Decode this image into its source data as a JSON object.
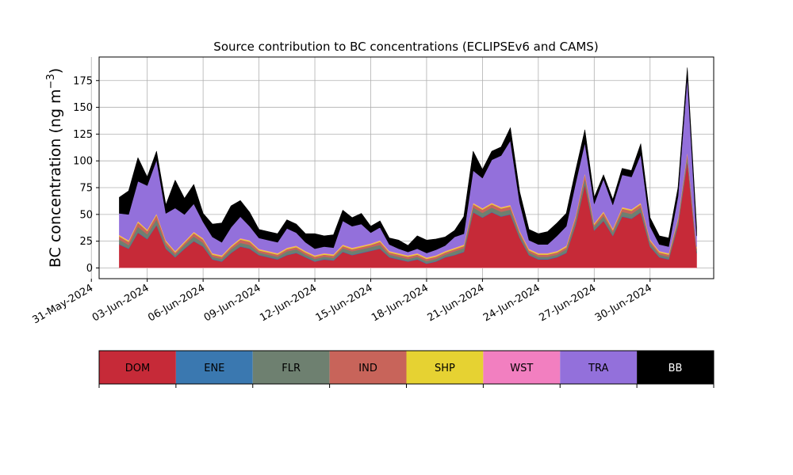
{
  "chart_data": {
    "type": "area",
    "stacked": true,
    "title": "Source contribution to BC concentrations (ECLIPSEv6 and CAMS)",
    "xlabel": "",
    "ylabel_main": "BC concentration (ng m",
    "ylabel_sup": "−3",
    "ylabel_end": ")",
    "ylim": [
      -10,
      197
    ],
    "yticks": [
      0,
      25,
      50,
      75,
      100,
      125,
      150,
      175
    ],
    "xlim": [
      "2024-05-31T10:00",
      "2024-07-03T10:00"
    ],
    "xticks": [
      {
        "date": "2024-05-31",
        "label": "31-May-2024"
      },
      {
        "date": "2024-06-03",
        "label": "03-Jun-2024"
      },
      {
        "date": "2024-06-06",
        "label": "06-Jun-2024"
      },
      {
        "date": "2024-06-09",
        "label": "09-Jun-2024"
      },
      {
        "date": "2024-06-12",
        "label": "12-Jun-2024"
      },
      {
        "date": "2024-06-15",
        "label": "15-Jun-2024"
      },
      {
        "date": "2024-06-18",
        "label": "18-Jun-2024"
      },
      {
        "date": "2024-06-21",
        "label": "21-Jun-2024"
      },
      {
        "date": "2024-06-24",
        "label": "24-Jun-2024"
      },
      {
        "date": "2024-06-27",
        "label": "27-Jun-2024"
      },
      {
        "date": "2024-06-30",
        "label": "30-Jun-2024"
      }
    ],
    "grid": true,
    "legend_position": "bottom",
    "x": [
      "2024-06-01T12:00",
      "2024-06-02T00:00",
      "2024-06-02T12:00",
      "2024-06-03T00:00",
      "2024-06-03T12:00",
      "2024-06-04T00:00",
      "2024-06-04T12:00",
      "2024-06-05T00:00",
      "2024-06-05T12:00",
      "2024-06-06T00:00",
      "2024-06-06T12:00",
      "2024-06-07T00:00",
      "2024-06-07T12:00",
      "2024-06-08T00:00",
      "2024-06-08T12:00",
      "2024-06-09T00:00",
      "2024-06-09T12:00",
      "2024-06-10T00:00",
      "2024-06-10T12:00",
      "2024-06-11T00:00",
      "2024-06-11T12:00",
      "2024-06-12T00:00",
      "2024-06-12T12:00",
      "2024-06-13T00:00",
      "2024-06-13T12:00",
      "2024-06-14T00:00",
      "2024-06-14T12:00",
      "2024-06-15T00:00",
      "2024-06-15T12:00",
      "2024-06-16T00:00",
      "2024-06-16T12:00",
      "2024-06-17T00:00",
      "2024-06-17T12:00",
      "2024-06-18T00:00",
      "2024-06-18T12:00",
      "2024-06-19T00:00",
      "2024-06-19T12:00",
      "2024-06-20T00:00",
      "2024-06-20T12:00",
      "2024-06-21T00:00",
      "2024-06-21T12:00",
      "2024-06-22T00:00",
      "2024-06-22T12:00",
      "2024-06-23T00:00",
      "2024-06-23T12:00",
      "2024-06-24T00:00",
      "2024-06-24T12:00",
      "2024-06-25T00:00",
      "2024-06-25T12:00",
      "2024-06-26T00:00",
      "2024-06-26T12:00",
      "2024-06-27T00:00",
      "2024-06-27T12:00",
      "2024-06-28T00:00",
      "2024-06-28T12:00",
      "2024-06-29T00:00",
      "2024-06-29T12:00",
      "2024-06-30T00:00",
      "2024-06-30T12:00",
      "2024-07-01T00:00",
      "2024-07-01T12:00",
      "2024-07-02T00:00",
      "2024-07-02T12:00"
    ],
    "series": [
      {
        "name": "DOM",
        "color": "#c62a38",
        "values": [
          22,
          18,
          33,
          27,
          40,
          18,
          10,
          18,
          25,
          20,
          8,
          6,
          14,
          20,
          18,
          12,
          10,
          8,
          12,
          14,
          10,
          6,
          8,
          7,
          15,
          12,
          14,
          16,
          18,
          10,
          8,
          6,
          8,
          4,
          6,
          10,
          12,
          15,
          52,
          47,
          52,
          48,
          50,
          28,
          12,
          8,
          8,
          10,
          14,
          40,
          78,
          35,
          44,
          30,
          48,
          46,
          52,
          20,
          10,
          8,
          40,
          100,
          14
        ]
      },
      {
        "name": "ENE",
        "color": "#3a78b0",
        "values": [
          0.5,
          0.5,
          0.5,
          0.5,
          0.5,
          0.5,
          0.5,
          0.5,
          0.5,
          0.5,
          0.5,
          0.5,
          0.5,
          0.5,
          0.5,
          0.5,
          0.5,
          0.5,
          0.5,
          0.5,
          0.5,
          0.5,
          0.5,
          0.5,
          0.5,
          0.5,
          0.5,
          0.5,
          0.5,
          0.5,
          0.5,
          0.5,
          0.5,
          0.5,
          0.5,
          0.5,
          0.5,
          0.5,
          0.5,
          0.5,
          0.5,
          0.5,
          0.5,
          0.5,
          0.5,
          0.5,
          0.5,
          0.5,
          0.5,
          0.5,
          0.5,
          0.5,
          0.5,
          0.5,
          0.5,
          0.5,
          0.5,
          0.5,
          0.5,
          0.5,
          0.5,
          0.5,
          0.5
        ]
      },
      {
        "name": "FLR",
        "color": "#6e8070",
        "values": [
          4,
          3,
          5,
          4,
          5,
          3,
          2,
          3,
          4,
          3,
          2,
          2,
          3,
          3,
          3,
          2,
          2,
          2,
          3,
          3,
          2,
          2,
          2,
          2,
          3,
          3,
          3,
          3,
          3,
          2,
          2,
          2,
          2,
          2,
          2,
          2,
          3,
          3,
          4,
          4,
          4,
          4,
          4,
          3,
          2,
          2,
          2,
          2,
          3,
          4,
          5,
          3,
          4,
          3,
          4,
          4,
          4,
          3,
          2,
          2,
          3,
          4,
          2
        ]
      },
      {
        "name": "IND",
        "color": "#c8645a",
        "values": [
          3,
          3,
          4,
          3,
          4,
          3,
          2,
          2,
          3,
          3,
          2,
          2,
          2,
          3,
          3,
          2,
          2,
          2,
          2,
          2,
          2,
          2,
          2,
          2,
          2,
          2,
          2,
          2,
          3,
          2,
          2,
          2,
          2,
          2,
          2,
          2,
          2,
          2,
          3,
          3,
          3,
          3,
          3,
          2,
          2,
          2,
          2,
          2,
          2,
          3,
          4,
          2,
          3,
          2,
          3,
          3,
          3,
          2,
          2,
          2,
          2,
          3,
          2
        ]
      },
      {
        "name": "SHP",
        "color": "#e6d232",
        "values": [
          1,
          1,
          1,
          1,
          1,
          1,
          1,
          1,
          1,
          1,
          1,
          1,
          1,
          1,
          1,
          1,
          1,
          1,
          1,
          1,
          1,
          1,
          1,
          1,
          1,
          1,
          1,
          1,
          1,
          1,
          1,
          1,
          1,
          1,
          1,
          1,
          1,
          1,
          1,
          1,
          1,
          1,
          1,
          1,
          1,
          1,
          1,
          1,
          1,
          1,
          1,
          1,
          1,
          1,
          1,
          1,
          1,
          1,
          1,
          1,
          1,
          1,
          1
        ]
      },
      {
        "name": "WST",
        "color": "#f27fc0",
        "values": [
          0.5,
          0.5,
          0.5,
          0.5,
          0.5,
          0.5,
          0.5,
          0.5,
          0.5,
          0.5,
          0.5,
          0.5,
          0.5,
          0.5,
          0.5,
          0.5,
          0.5,
          0.5,
          0.5,
          0.5,
          0.5,
          0.5,
          0.5,
          0.5,
          0.5,
          0.5,
          0.5,
          0.5,
          0.5,
          0.5,
          0.5,
          0.5,
          0.5,
          0.5,
          0.5,
          0.5,
          0.5,
          0.5,
          0.5,
          0.5,
          0.5,
          0.5,
          0.5,
          0.5,
          0.5,
          0.5,
          0.5,
          0.5,
          0.5,
          0.5,
          0.5,
          0.5,
          0.5,
          0.5,
          0.5,
          0.5,
          0.5,
          0.5,
          0.5,
          0.5,
          0.5,
          0.5,
          0.5
        ]
      },
      {
        "name": "TRA",
        "color": "#9370db",
        "values": [
          20,
          24,
          37,
          41,
          50,
          25,
          40,
          25,
          26,
          15,
          15,
          12,
          17,
          20,
          13,
          10,
          10,
          10,
          18,
          12,
          8,
          6,
          6,
          6,
          22,
          20,
          20,
          10,
          12,
          6,
          4,
          3,
          4,
          4,
          5,
          5,
          10,
          10,
          30,
          28,
          40,
          48,
          60,
          26,
          8,
          8,
          8,
          14,
          18,
          30,
          28,
          18,
          30,
          22,
          30,
          30,
          45,
          12,
          6,
          6,
          20,
          70,
          10
        ]
      },
      {
        "name": "BB",
        "color": "#000000",
        "values": [
          15,
          22,
          22,
          8,
          8,
          8,
          26,
          15,
          18,
          8,
          12,
          18,
          20,
          15,
          13,
          8,
          8,
          8,
          8,
          8,
          8,
          14,
          10,
          12,
          10,
          8,
          10,
          6,
          6,
          6,
          8,
          6,
          12,
          12,
          10,
          8,
          6,
          16,
          18,
          8,
          8,
          8,
          12,
          10,
          10,
          10,
          12,
          12,
          12,
          12,
          12,
          6,
          4,
          5,
          6,
          6,
          10,
          8,
          8,
          8,
          8,
          8,
          8
        ]
      }
    ]
  },
  "legend": {
    "items": [
      {
        "label": "DOM",
        "color": "#c62a38",
        "text_color": "#000000"
      },
      {
        "label": "ENE",
        "color": "#3a78b0",
        "text_color": "#000000"
      },
      {
        "label": "FLR",
        "color": "#6e8070",
        "text_color": "#000000"
      },
      {
        "label": "IND",
        "color": "#c8645a",
        "text_color": "#000000"
      },
      {
        "label": "SHP",
        "color": "#e6d232",
        "text_color": "#000000"
      },
      {
        "label": "WST",
        "color": "#f27fc0",
        "text_color": "#000000"
      },
      {
        "label": "TRA",
        "color": "#9370db",
        "text_color": "#000000"
      },
      {
        "label": "BB",
        "color": "#000000",
        "text_color": "#ffffff"
      }
    ]
  }
}
